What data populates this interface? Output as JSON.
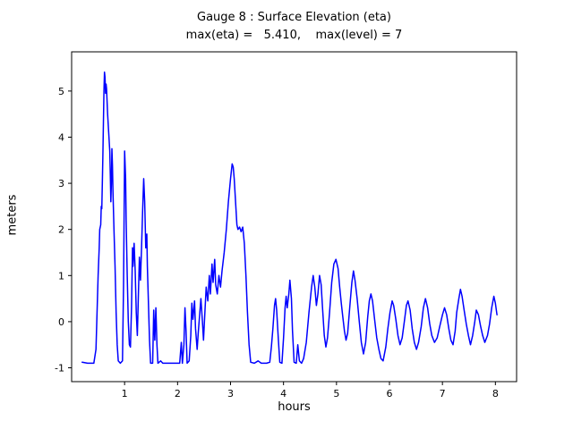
{
  "chart_data": {
    "type": "line",
    "title": "Gauge 8 : Surface Elevation (eta)",
    "subtitle": "max(eta) =   5.410,    max(level) = 7",
    "max_eta": 5.41,
    "max_level": 7,
    "xlabel": "hours",
    "ylabel": "meters",
    "xlim": [
      0.0,
      8.4
    ],
    "ylim": [
      -1.3,
      5.85
    ],
    "xticks": [
      1,
      2,
      3,
      4,
      5,
      6,
      7,
      8
    ],
    "yticks": [
      -1,
      0,
      1,
      2,
      3,
      4,
      5
    ],
    "grid": false,
    "legend_position": "none",
    "line_color": "#0000ff",
    "axis_color": "#000000",
    "series": [
      {
        "name": "eta",
        "points": [
          [
            0.2,
            -0.88
          ],
          [
            0.3,
            -0.9
          ],
          [
            0.42,
            -0.9
          ],
          [
            0.46,
            -0.6
          ],
          [
            0.48,
            0.2
          ],
          [
            0.5,
            1.0
          ],
          [
            0.52,
            1.6
          ],
          [
            0.53,
            2.0
          ],
          [
            0.55,
            2.1
          ],
          [
            0.56,
            2.5
          ],
          [
            0.57,
            2.45
          ],
          [
            0.58,
            3.0
          ],
          [
            0.59,
            3.6
          ],
          [
            0.6,
            4.3
          ],
          [
            0.61,
            5.0
          ],
          [
            0.62,
            5.41
          ],
          [
            0.63,
            5.3
          ],
          [
            0.64,
            4.95
          ],
          [
            0.65,
            5.15
          ],
          [
            0.66,
            5.05
          ],
          [
            0.68,
            4.5
          ],
          [
            0.7,
            4.1
          ],
          [
            0.72,
            3.7
          ],
          [
            0.73,
            3.2
          ],
          [
            0.74,
            2.6
          ],
          [
            0.75,
            3.0
          ],
          [
            0.76,
            3.75
          ],
          [
            0.77,
            3.4
          ],
          [
            0.78,
            2.8
          ],
          [
            0.8,
            2.0
          ],
          [
            0.82,
            1.2
          ],
          [
            0.84,
            0.2
          ],
          [
            0.86,
            -0.5
          ],
          [
            0.88,
            -0.85
          ],
          [
            0.92,
            -0.9
          ],
          [
            0.96,
            -0.85
          ],
          [
            0.98,
            0.8
          ],
          [
            1.0,
            3.7
          ],
          [
            1.02,
            3.1
          ],
          [
            1.03,
            2.2
          ],
          [
            1.05,
            1.0
          ],
          [
            1.07,
            0.0
          ],
          [
            1.09,
            -0.5
          ],
          [
            1.11,
            -0.55
          ],
          [
            1.13,
            0.3
          ],
          [
            1.15,
            1.6
          ],
          [
            1.16,
            1.2
          ],
          [
            1.18,
            1.7
          ],
          [
            1.2,
            1.1
          ],
          [
            1.22,
            0.2
          ],
          [
            1.24,
            -0.3
          ],
          [
            1.26,
            0.6
          ],
          [
            1.28,
            1.4
          ],
          [
            1.3,
            0.9
          ],
          [
            1.32,
            1.6
          ],
          [
            1.34,
            2.4
          ],
          [
            1.36,
            3.1
          ],
          [
            1.38,
            2.6
          ],
          [
            1.4,
            1.6
          ],
          [
            1.42,
            1.9
          ],
          [
            1.43,
            1.2
          ],
          [
            1.45,
            0.4
          ],
          [
            1.47,
            -0.4
          ],
          [
            1.49,
            -0.9
          ],
          [
            1.53,
            -0.9
          ],
          [
            1.55,
            0.25
          ],
          [
            1.57,
            -0.4
          ],
          [
            1.59,
            0.3
          ],
          [
            1.61,
            -0.5
          ],
          [
            1.63,
            -0.9
          ],
          [
            1.68,
            -0.85
          ],
          [
            1.72,
            -0.9
          ],
          [
            1.9,
            -0.9
          ],
          [
            2.04,
            -0.9
          ],
          [
            2.07,
            -0.45
          ],
          [
            2.09,
            -0.9
          ],
          [
            2.12,
            -0.5
          ],
          [
            2.14,
            0.3
          ],
          [
            2.16,
            -0.2
          ],
          [
            2.18,
            -0.9
          ],
          [
            2.22,
            -0.85
          ],
          [
            2.25,
            -0.3
          ],
          [
            2.27,
            0.4
          ],
          [
            2.29,
            0.05
          ],
          [
            2.32,
            0.45
          ],
          [
            2.34,
            -0.15
          ],
          [
            2.37,
            -0.6
          ],
          [
            2.39,
            -0.25
          ],
          [
            2.42,
            0.2
          ],
          [
            2.44,
            0.5
          ],
          [
            2.47,
            0.0
          ],
          [
            2.49,
            -0.4
          ],
          [
            2.52,
            0.3
          ],
          [
            2.54,
            0.75
          ],
          [
            2.57,
            0.45
          ],
          [
            2.6,
            1.0
          ],
          [
            2.62,
            0.6
          ],
          [
            2.65,
            1.25
          ],
          [
            2.67,
            0.85
          ],
          [
            2.7,
            1.35
          ],
          [
            2.72,
            0.8
          ],
          [
            2.75,
            0.6
          ],
          [
            2.78,
            1.0
          ],
          [
            2.81,
            0.75
          ],
          [
            2.84,
            1.1
          ],
          [
            2.88,
            1.5
          ],
          [
            2.92,
            2.0
          ],
          [
            2.96,
            2.6
          ],
          [
            3.0,
            3.1
          ],
          [
            3.03,
            3.42
          ],
          [
            3.05,
            3.35
          ],
          [
            3.07,
            3.1
          ],
          [
            3.09,
            2.7
          ],
          [
            3.12,
            2.1
          ],
          [
            3.14,
            2.0
          ],
          [
            3.17,
            2.05
          ],
          [
            3.2,
            1.95
          ],
          [
            3.23,
            2.05
          ],
          [
            3.26,
            1.7
          ],
          [
            3.29,
            1.0
          ],
          [
            3.32,
            0.2
          ],
          [
            3.35,
            -0.5
          ],
          [
            3.38,
            -0.88
          ],
          [
            3.45,
            -0.9
          ],
          [
            3.52,
            -0.85
          ],
          [
            3.58,
            -0.9
          ],
          [
            3.68,
            -0.9
          ],
          [
            3.74,
            -0.88
          ],
          [
            3.77,
            -0.55
          ],
          [
            3.8,
            -0.15
          ],
          [
            3.83,
            0.35
          ],
          [
            3.85,
            0.5
          ],
          [
            3.87,
            0.25
          ],
          [
            3.9,
            -0.35
          ],
          [
            3.93,
            -0.88
          ],
          [
            3.97,
            -0.9
          ],
          [
            4.0,
            -0.35
          ],
          [
            4.03,
            0.3
          ],
          [
            4.05,
            0.55
          ],
          [
            4.07,
            0.3
          ],
          [
            4.1,
            0.6
          ],
          [
            4.12,
            0.9
          ],
          [
            4.15,
            0.5
          ],
          [
            4.17,
            -0.2
          ],
          [
            4.2,
            -0.88
          ],
          [
            4.24,
            -0.9
          ],
          [
            4.27,
            -0.5
          ],
          [
            4.3,
            -0.85
          ],
          [
            4.34,
            -0.9
          ],
          [
            4.38,
            -0.8
          ],
          [
            4.43,
            -0.45
          ],
          [
            4.48,
            0.2
          ],
          [
            4.53,
            0.75
          ],
          [
            4.56,
            1.0
          ],
          [
            4.59,
            0.75
          ],
          [
            4.62,
            0.35
          ],
          [
            4.65,
            0.6
          ],
          [
            4.68,
            1.0
          ],
          [
            4.71,
            0.8
          ],
          [
            4.74,
            0.25
          ],
          [
            4.77,
            -0.3
          ],
          [
            4.8,
            -0.55
          ],
          [
            4.83,
            -0.35
          ],
          [
            4.87,
            0.2
          ],
          [
            4.91,
            0.85
          ],
          [
            4.95,
            1.25
          ],
          [
            4.99,
            1.35
          ],
          [
            5.03,
            1.15
          ],
          [
            5.06,
            0.75
          ],
          [
            5.09,
            0.4
          ],
          [
            5.12,
            0.1
          ],
          [
            5.15,
            -0.2
          ],
          [
            5.18,
            -0.4
          ],
          [
            5.21,
            -0.25
          ],
          [
            5.25,
            0.3
          ],
          [
            5.29,
            0.85
          ],
          [
            5.32,
            1.1
          ],
          [
            5.35,
            0.9
          ],
          [
            5.39,
            0.5
          ],
          [
            5.43,
            0.0
          ],
          [
            5.47,
            -0.45
          ],
          [
            5.51,
            -0.7
          ],
          [
            5.55,
            -0.45
          ],
          [
            5.59,
            0.1
          ],
          [
            5.62,
            0.45
          ],
          [
            5.65,
            0.6
          ],
          [
            5.68,
            0.45
          ],
          [
            5.72,
            0.05
          ],
          [
            5.76,
            -0.35
          ],
          [
            5.8,
            -0.6
          ],
          [
            5.84,
            -0.8
          ],
          [
            5.88,
            -0.85
          ],
          [
            5.93,
            -0.55
          ],
          [
            5.97,
            -0.15
          ],
          [
            6.01,
            0.2
          ],
          [
            6.05,
            0.45
          ],
          [
            6.08,
            0.35
          ],
          [
            6.12,
            0.05
          ],
          [
            6.16,
            -0.3
          ],
          [
            6.2,
            -0.5
          ],
          [
            6.24,
            -0.35
          ],
          [
            6.28,
            0.0
          ],
          [
            6.32,
            0.35
          ],
          [
            6.35,
            0.45
          ],
          [
            6.39,
            0.25
          ],
          [
            6.43,
            -0.15
          ],
          [
            6.47,
            -0.45
          ],
          [
            6.51,
            -0.6
          ],
          [
            6.55,
            -0.45
          ],
          [
            6.6,
            -0.1
          ],
          [
            6.64,
            0.3
          ],
          [
            6.68,
            0.5
          ],
          [
            6.72,
            0.3
          ],
          [
            6.76,
            -0.05
          ],
          [
            6.8,
            -0.3
          ],
          [
            6.85,
            -0.45
          ],
          [
            6.9,
            -0.35
          ],
          [
            6.95,
            -0.1
          ],
          [
            7.0,
            0.15
          ],
          [
            7.04,
            0.3
          ],
          [
            7.08,
            0.15
          ],
          [
            7.12,
            -0.15
          ],
          [
            7.16,
            -0.4
          ],
          [
            7.2,
            -0.5
          ],
          [
            7.24,
            -0.2
          ],
          [
            7.27,
            0.2
          ],
          [
            7.31,
            0.5
          ],
          [
            7.34,
            0.7
          ],
          [
            7.37,
            0.55
          ],
          [
            7.41,
            0.25
          ],
          [
            7.45,
            -0.05
          ],
          [
            7.49,
            -0.3
          ],
          [
            7.53,
            -0.5
          ],
          [
            7.57,
            -0.3
          ],
          [
            7.61,
            0.0
          ],
          [
            7.64,
            0.25
          ],
          [
            7.68,
            0.15
          ],
          [
            7.72,
            -0.1
          ],
          [
            7.76,
            -0.3
          ],
          [
            7.8,
            -0.45
          ],
          [
            7.85,
            -0.3
          ],
          [
            7.89,
            -0.05
          ],
          [
            7.93,
            0.3
          ],
          [
            7.97,
            0.55
          ],
          [
            8.0,
            0.4
          ],
          [
            8.03,
            0.15
          ]
        ]
      }
    ]
  }
}
